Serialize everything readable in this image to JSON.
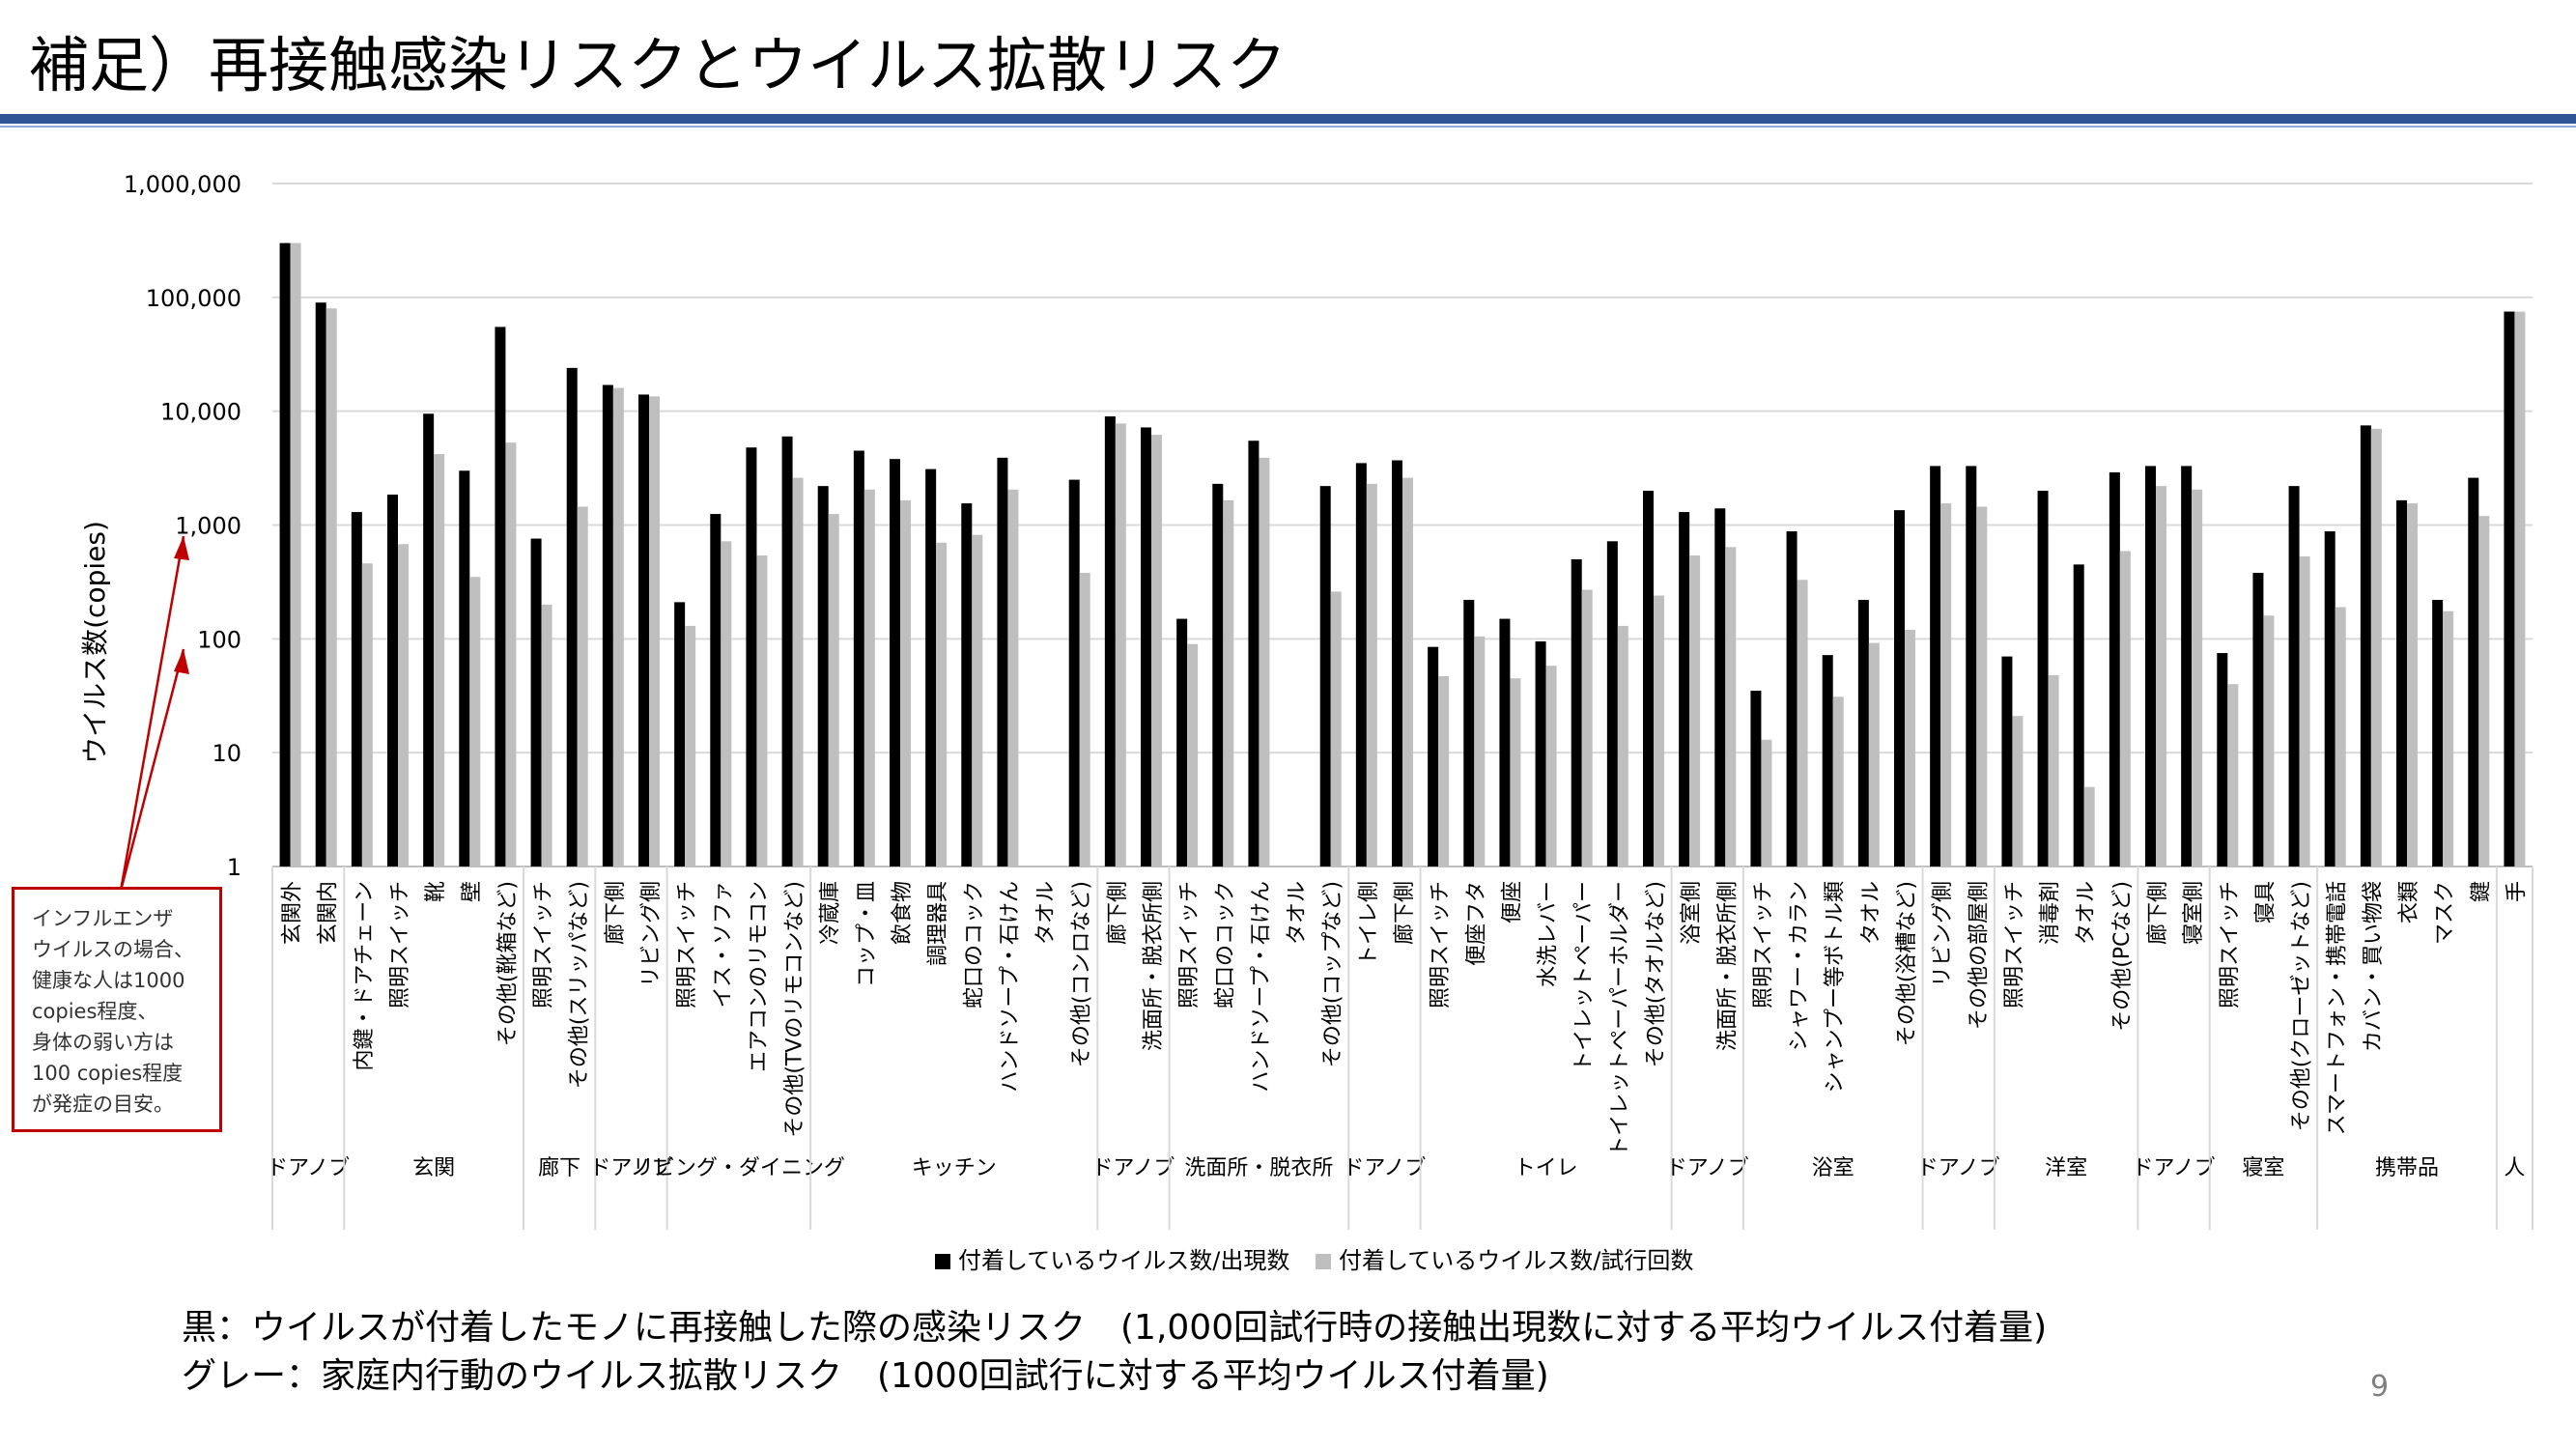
{
  "slide": {
    "title": "補足）再接触感染リスクとウイルス拡散リスク",
    "note_lines": [
      "インフルエンザ",
      "ウイルスの場合、",
      "健康な人は1000",
      "copies程度、",
      "身体の弱い方は",
      "100 copies程度",
      "が発症の目安。"
    ],
    "footnote_black": "黒：ウイルスが付着したモノに再接触した際の感染リスク　(1,000回試行時の接触出現数に対する平均ウイルス付着量)",
    "footnote_gray": "グレー：家庭内行動のウイルス拡散リスク　(1000回試行に対する平均ウイルス付着量)",
    "page_number": "9",
    "colors": {
      "title_rule": "#2f5597",
      "annotation": "#c00000",
      "series_black": "#000000",
      "series_gray": "#bfbfbf",
      "grid": "#d9d9d9"
    }
  },
  "chart_data": {
    "type": "bar",
    "y_scale": "log",
    "ylim": [
      1,
      1000000
    ],
    "ylabel": "ウイルス数(copies)",
    "y_ticks": [
      "1",
      "10",
      "100",
      "1,000",
      "10,000",
      "100,000",
      "1,000,000"
    ],
    "y_tick_values": [
      1,
      10,
      100,
      1000,
      10000,
      100000,
      1000000
    ],
    "grid": true,
    "legend_position": "bottom",
    "categories": [
      "玄関外",
      "玄関内",
      "内鍵・ドアチェーン",
      "照明スイッチ",
      "靴",
      "壁",
      "その他(靴箱など)",
      "照明スイッチ",
      "その他(スリッパなど)",
      "廊下側",
      "リビング側",
      "照明スイッチ",
      "イス・ソファ",
      "エアコンのリモコン",
      "その他(TVのリモコンなど)",
      "冷蔵庫",
      "コップ・皿",
      "飲食物",
      "調理器具",
      "蛇口のコック",
      "ハンドソープ・石けん",
      "タオル",
      "その他(コンロなど)",
      "廊下側",
      "洗面所・脱衣所側",
      "照明スイッチ",
      "蛇口のコック",
      "ハンドソープ・石けん",
      "タオル",
      "その他(コップなど)",
      "トイレ側",
      "廊下側",
      "照明スイッチ",
      "便座フタ",
      "便座",
      "水洗レバー",
      "トイレットペーパー",
      "トイレットペーパーホルダー",
      "その他(タオルなど)",
      "浴室側",
      "洗面所・脱衣所側",
      "照明スイッチ",
      "シャワー・カラン",
      "シャンプー等ボトル類",
      "タオル",
      "その他(浴槽など)",
      "リビング側",
      "その他の部屋側",
      "照明スイッチ",
      "消毒剤",
      "タオル",
      "その他(PCなど)",
      "廊下側",
      "寝室側",
      "照明スイッチ",
      "寝具",
      "その他(クローゼットなど)",
      "スマートフォン・携帯電話",
      "カバン・買い物袋",
      "衣類",
      "マスク",
      "鍵",
      "手"
    ],
    "groups": [
      {
        "name": "ドアノブ",
        "start": 0,
        "count": 2
      },
      {
        "name": "玄関",
        "start": 2,
        "count": 5
      },
      {
        "name": "廊下",
        "start": 7,
        "count": 2
      },
      {
        "name": "ドアノブ",
        "start": 9,
        "count": 2
      },
      {
        "name": "リビング・ダイニング",
        "start": 11,
        "count": 4
      },
      {
        "name": "キッチン",
        "start": 15,
        "count": 8
      },
      {
        "name": "ドアノブ",
        "start": 23,
        "count": 2
      },
      {
        "name": "洗面所・脱衣所",
        "start": 25,
        "count": 5
      },
      {
        "name": "ドアノブ",
        "start": 30,
        "count": 2
      },
      {
        "name": "トイレ",
        "start": 32,
        "count": 7
      },
      {
        "name": "ドアノブ",
        "start": 39,
        "count": 2
      },
      {
        "name": "浴室",
        "start": 41,
        "count": 5
      },
      {
        "name": "ドアノブ",
        "start": 46,
        "count": 2
      },
      {
        "name": "洋室",
        "start": 48,
        "count": 4
      },
      {
        "name": "ドアノブ",
        "start": 52,
        "count": 2
      },
      {
        "name": "寝室",
        "start": 54,
        "count": 3
      },
      {
        "name": "携帯品",
        "start": 57,
        "count": 5
      },
      {
        "name": "人",
        "start": 62,
        "count": 1
      }
    ],
    "series": [
      {
        "name": "付着しているウイルス数/出現数",
        "color": "#000000",
        "values": [
          300000,
          90000,
          1300,
          1850,
          9500,
          3000,
          55000,
          760,
          24000,
          17000,
          14000,
          210,
          1250,
          4800,
          6000,
          2200,
          4500,
          3800,
          3100,
          1550,
          3900,
          0,
          2500,
          9000,
          7200,
          150,
          2300,
          5500,
          0,
          2200,
          3500,
          3700,
          85,
          220,
          150,
          95,
          500,
          720,
          2000,
          1300,
          1400,
          35,
          880,
          72,
          220,
          1350,
          3300,
          3300,
          70,
          2000,
          450,
          2900,
          3300,
          3300,
          75,
          380,
          2200,
          880,
          7500,
          1650,
          220,
          2600,
          75000
        ]
      },
      {
        "name": "付着しているウイルス数/試行回数",
        "color": "#bfbfbf",
        "values": [
          300000,
          80000,
          460,
          680,
          4200,
          350,
          5300,
          200,
          1450,
          16000,
          13500,
          130,
          720,
          540,
          2600,
          1250,
          2050,
          1650,
          700,
          820,
          2050,
          0,
          380,
          7800,
          6200,
          90,
          1650,
          3900,
          0,
          260,
          2300,
          2600,
          47,
          105,
          45,
          58,
          270,
          130,
          240,
          540,
          640,
          13,
          330,
          31,
          92,
          120,
          1550,
          1450,
          21,
          48,
          5,
          590,
          2200,
          2050,
          40,
          160,
          530,
          190,
          7000,
          1550,
          175,
          1200,
          75000
        ]
      }
    ]
  }
}
